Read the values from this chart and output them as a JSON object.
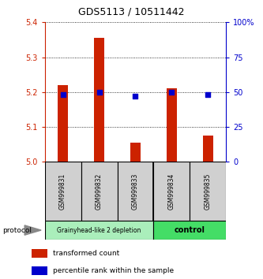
{
  "title": "GDS5113 / 10511442",
  "samples": [
    "GSM999831",
    "GSM999832",
    "GSM999833",
    "GSM999834",
    "GSM999835"
  ],
  "red_values": [
    5.22,
    5.355,
    5.055,
    5.21,
    5.075
  ],
  "blue_values": [
    48,
    50,
    47,
    50,
    48
  ],
  "ylim_left": [
    5.0,
    5.4
  ],
  "ylim_right": [
    0,
    100
  ],
  "yticks_left": [
    5.0,
    5.1,
    5.2,
    5.3,
    5.4
  ],
  "yticks_right": [
    0,
    25,
    50,
    75,
    100
  ],
  "ytick_labels_right": [
    "0",
    "25",
    "50",
    "75",
    "100%"
  ],
  "group1_samples": [
    0,
    1,
    2
  ],
  "group2_samples": [
    3,
    4
  ],
  "group1_label": "Grainyhead-like 2 depletion",
  "group2_label": "control",
  "group1_color": "#aaeebb",
  "group2_color": "#44dd66",
  "protocol_label": "protocol",
  "legend_red_label": "transformed count",
  "legend_blue_label": "percentile rank within the sample",
  "red_color": "#CC2200",
  "blue_color": "#0000CC",
  "bar_bottom": 5.0,
  "bar_width": 0.3,
  "sample_box_color": "#d0d0d0",
  "grid_linestyle": "dotted",
  "title_fontsize": 9,
  "tick_fontsize": 7,
  "label_fontsize": 6,
  "sample_fontsize": 5.5,
  "legend_fontsize": 6.5
}
